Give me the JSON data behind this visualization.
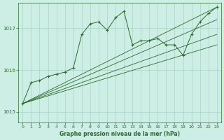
{
  "background_color": "#cceee4",
  "grid_color": "#aad4c8",
  "line_color": "#2d6a2d",
  "title": "Graphe pression niveau de la mer (hPa)",
  "xlim": [
    -0.5,
    23.5
  ],
  "ylim": [
    1014.75,
    1017.6
  ],
  "yticks": [
    1015,
    1016,
    1017
  ],
  "xticks": [
    0,
    1,
    2,
    3,
    4,
    5,
    6,
    7,
    8,
    9,
    10,
    11,
    12,
    13,
    14,
    15,
    16,
    17,
    18,
    19,
    20,
    21,
    22,
    23
  ],
  "main_line": {
    "x": [
      0,
      1,
      2,
      3,
      4,
      5,
      6,
      7,
      8,
      9,
      10,
      11,
      12,
      13,
      14,
      15,
      16,
      17,
      18,
      19,
      20,
      21,
      22,
      23
    ],
    "y": [
      1015.2,
      1015.7,
      1015.75,
      1015.85,
      1015.9,
      1015.95,
      1016.05,
      1016.85,
      1017.1,
      1017.15,
      1016.95,
      1017.25,
      1017.4,
      1016.6,
      1016.7,
      1016.7,
      1016.75,
      1016.6,
      1016.6,
      1016.35,
      1016.85,
      1017.15,
      1017.35,
      1017.5
    ]
  },
  "fan_lines": [
    {
      "x": [
        0,
        23
      ],
      "y": [
        1015.2,
        1017.5
      ]
    },
    {
      "x": [
        0,
        23
      ],
      "y": [
        1015.2,
        1017.2
      ]
    },
    {
      "x": [
        0,
        23
      ],
      "y": [
        1015.2,
        1016.85
      ]
    },
    {
      "x": [
        0,
        23
      ],
      "y": [
        1015.2,
        1016.6
      ]
    }
  ]
}
